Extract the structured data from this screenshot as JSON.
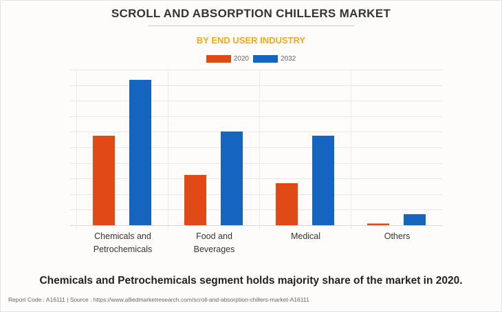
{
  "header": {
    "title": "SCROLL AND ABSORPTION CHILLERS MARKET",
    "subtitle": "BY END USER INDUSTRY"
  },
  "footer": {
    "caption": "Chemicals and Petrochemicals segment holds majority share of the market in 2020.",
    "source": "Report Code : A16111  |  Source : https://www.alliedmarketresearch.com/scroll-and-absorption-chillers-market-A16111"
  },
  "colors": {
    "series_2020": "#e04a16",
    "series_2032": "#1565c0",
    "subtitle": "#f5a623",
    "grid": "#e6e6e6"
  },
  "chart_data": {
    "type": "bar",
    "title": "SCROLL AND ABSORPTION CHILLERS MARKET",
    "subtitle": "BY END USER INDUSTRY",
    "xlabel": "",
    "ylabel": "",
    "y_axis_labels_shown": false,
    "grid": true,
    "legend_position": "top-center",
    "ylim": [
      0,
      10
    ],
    "y_gridlines": 10,
    "categories": [
      "Chemicals and Petrochemicals",
      "Food and Beverages",
      "Medical",
      "Others"
    ],
    "category_label_lines": [
      [
        "Chemicals and",
        "Petrochemicals"
      ],
      [
        "Food and",
        "Beverages"
      ],
      [
        "Medical"
      ],
      [
        "Others"
      ]
    ],
    "series": [
      {
        "name": "2020",
        "values": [
          5.75,
          3.23,
          2.7,
          0.11
        ]
      },
      {
        "name": "2032",
        "values": [
          9.34,
          6.02,
          5.75,
          0.71
        ]
      }
    ]
  }
}
